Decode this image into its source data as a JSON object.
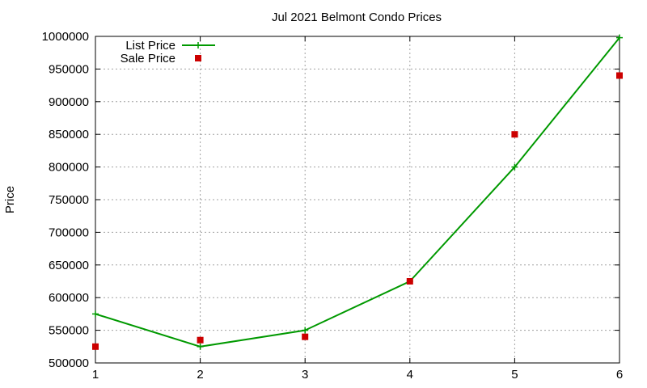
{
  "chart_data": {
    "type": "line",
    "title": "Jul 2021 Belmont Condo Prices",
    "xlabel": "",
    "ylabel": "Price",
    "x": [
      1,
      2,
      3,
      4,
      5,
      6
    ],
    "xlim": [
      1,
      6
    ],
    "ylim": [
      500000,
      1000000
    ],
    "xticks": [
      1,
      2,
      3,
      4,
      5,
      6
    ],
    "yticks": [
      500000,
      550000,
      600000,
      650000,
      700000,
      750000,
      800000,
      850000,
      900000,
      950000,
      1000000
    ],
    "grid": true,
    "legend_position": "top-left",
    "series": [
      {
        "name": "List Price",
        "style": "line+plus",
        "color": "#009900",
        "values": [
          575000,
          525000,
          550000,
          625000,
          800000,
          998000
        ]
      },
      {
        "name": "Sale Price",
        "style": "square-markers",
        "color": "#cc0000",
        "values": [
          525000,
          535000,
          540000,
          625000,
          850000,
          940000
        ]
      }
    ]
  }
}
